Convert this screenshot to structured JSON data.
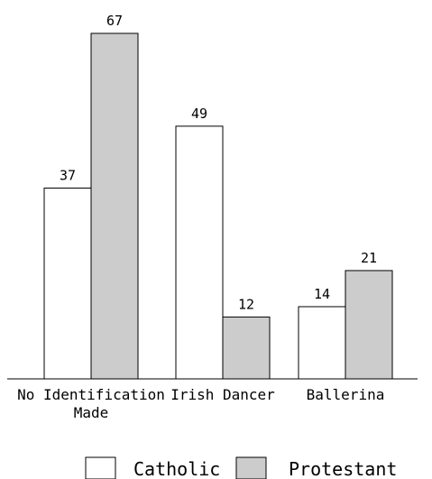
{
  "chart_data": {
    "type": "bar",
    "categories": [
      [
        "No Identification",
        "Made"
      ],
      [
        "Irish Dancer"
      ],
      [
        "Ballerina"
      ]
    ],
    "series": [
      {
        "name": "Catholic",
        "values": [
          37,
          49,
          14
        ],
        "color": "#ffffff"
      },
      {
        "name": "Protestant",
        "values": [
          67,
          12,
          21
        ],
        "color": "#cccccc"
      }
    ],
    "ylim": [
      0,
      67
    ],
    "grid": false,
    "legend_position": "bottom",
    "title": "",
    "xlabel": "",
    "ylabel": ""
  }
}
